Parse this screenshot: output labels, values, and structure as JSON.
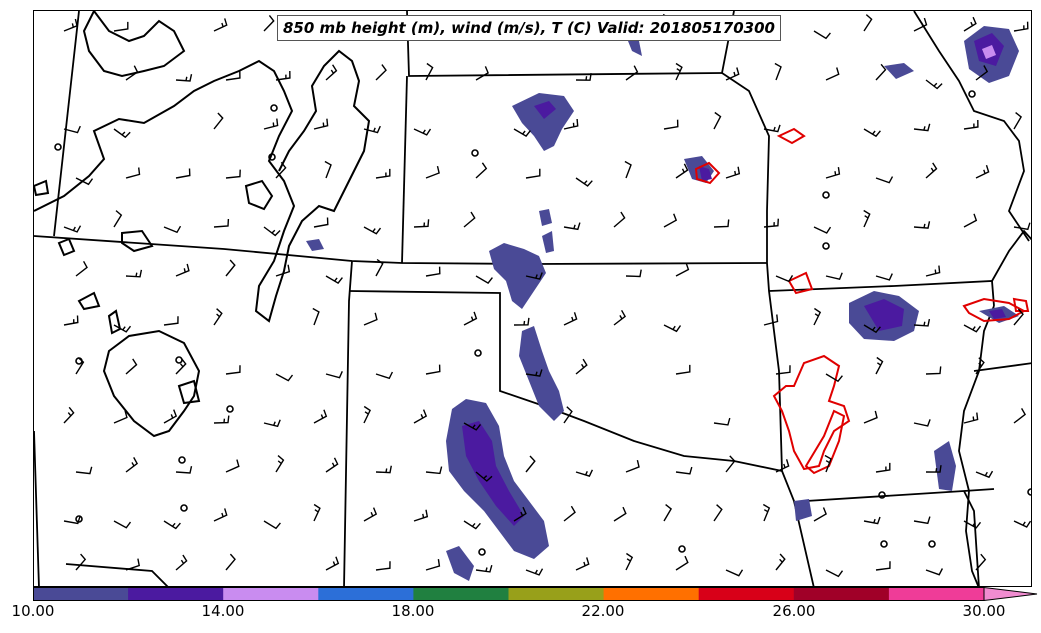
{
  "title": "850 mb height (m), wind (m/s), T (C) Valid: 201805170300",
  "colorbar": {
    "colors": [
      "#4a4a96",
      "#4b1aa0",
      "#c98cf0",
      "#2c6fd8",
      "#208040",
      "#98a01a",
      "#ff7000",
      "#d80018",
      "#a00028",
      "#ef3c98"
    ],
    "extend_color": "#f08cd0",
    "ticks": [
      "10.00",
      "14.00",
      "18.00",
      "22.00",
      "26.00",
      "30.00"
    ]
  },
  "map": {
    "background": "#ffffff",
    "boundary_color": "#000000",
    "contour_color": "#000000",
    "temp_contour_color": "#e00000",
    "barb_color": "#000000",
    "wind_shading_colors": [
      "#4a4a96",
      "#4b1aa0",
      "#c98cf0"
    ]
  }
}
